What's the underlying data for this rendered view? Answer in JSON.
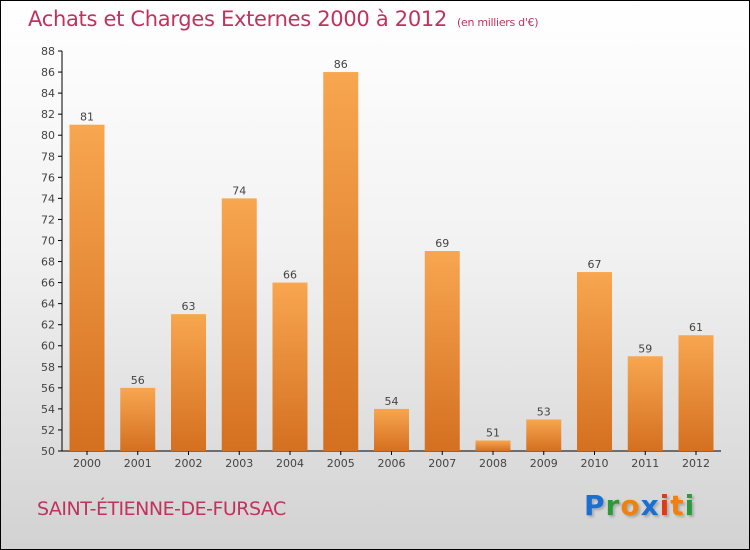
{
  "header": {
    "title": "Achats et Charges Externes 2000 à 2012",
    "unit": "(en milliers d'€)"
  },
  "footer": {
    "city": "SAINT-ÉTIENNE-DE-FURSAC",
    "logo": "Proxiti"
  },
  "colors": {
    "bar_top": "#f8a650",
    "bar_bottom": "#d47020",
    "title": "#c0335f"
  },
  "chart_data": {
    "type": "bar",
    "title": "Achats et Charges Externes 2000 à 2012",
    "ylabel": "en milliers d'€",
    "categories": [
      "2000",
      "2001",
      "2002",
      "2003",
      "2004",
      "2005",
      "2006",
      "2007",
      "2008",
      "2009",
      "2010",
      "2011",
      "2012"
    ],
    "values": [
      81,
      56,
      63,
      74,
      66,
      86,
      54,
      69,
      51,
      53,
      67,
      59,
      61
    ],
    "ylim": [
      50,
      88
    ],
    "yticks": [
      50,
      52,
      54,
      56,
      58,
      60,
      62,
      64,
      66,
      68,
      70,
      72,
      74,
      76,
      78,
      80,
      82,
      84,
      86,
      88
    ],
    "grid": false
  }
}
